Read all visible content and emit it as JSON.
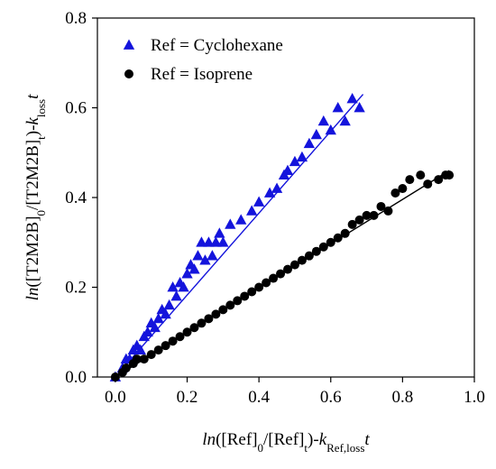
{
  "chart_data": {
    "type": "scatter",
    "title": "",
    "xlabel": {
      "segments": [
        {
          "text": "ln",
          "style": "italic"
        },
        {
          "text": "([Ref]",
          "style": "normal"
        },
        {
          "text": "0",
          "style": "sub"
        },
        {
          "text": "/[Ref]",
          "style": "normal"
        },
        {
          "text": "t",
          "style": "sub"
        },
        {
          "text": ")-",
          "style": "normal"
        },
        {
          "text": "k",
          "style": "italic"
        },
        {
          "text": "Ref,loss",
          "style": "sub"
        },
        {
          "text": "t",
          "style": "italic"
        }
      ]
    },
    "ylabel": {
      "segments": [
        {
          "text": "ln",
          "style": "italic"
        },
        {
          "text": "([T2M2B]",
          "style": "normal"
        },
        {
          "text": "0",
          "style": "sub"
        },
        {
          "text": "/[T2M2B]",
          "style": "normal"
        },
        {
          "text": "t",
          "style": "sub"
        },
        {
          "text": ")-",
          "style": "normal"
        },
        {
          "text": "k",
          "style": "italic"
        },
        {
          "text": "loss",
          "style": "sub"
        },
        {
          "text": "t",
          "style": "italic"
        }
      ]
    },
    "xlim": [
      -0.05,
      1.0
    ],
    "ylim": [
      0.0,
      0.8
    ],
    "xticks": [
      0.0,
      0.2,
      0.4,
      0.6,
      0.8,
      1.0
    ],
    "yticks": [
      0.0,
      0.2,
      0.4,
      0.6,
      0.8
    ],
    "xtick_labels": [
      "0.0",
      "0.2",
      "0.4",
      "0.6",
      "0.8",
      "1.0"
    ],
    "ytick_labels": [
      "0.0",
      "0.2",
      "0.4",
      "0.6",
      "0.8"
    ],
    "grid": false,
    "legend_position": "top-left",
    "series": [
      {
        "name": "Ref = Cyclohexane",
        "marker": "triangle",
        "color": "#1414dc",
        "x": [
          0.0,
          0.02,
          0.03,
          0.04,
          0.05,
          0.06,
          0.07,
          0.08,
          0.09,
          0.1,
          0.11,
          0.12,
          0.13,
          0.14,
          0.15,
          0.16,
          0.17,
          0.18,
          0.19,
          0.2,
          0.21,
          0.22,
          0.23,
          0.24,
          0.25,
          0.26,
          0.27,
          0.28,
          0.29,
          0.3,
          0.32,
          0.35,
          0.38,
          0.4,
          0.43,
          0.45,
          0.47,
          0.48,
          0.5,
          0.52,
          0.54,
          0.56,
          0.58,
          0.6,
          0.62,
          0.64,
          0.66,
          0.68
        ],
        "y": [
          0.0,
          0.02,
          0.04,
          0.04,
          0.06,
          0.07,
          0.06,
          0.09,
          0.1,
          0.12,
          0.11,
          0.13,
          0.15,
          0.14,
          0.16,
          0.2,
          0.18,
          0.21,
          0.2,
          0.23,
          0.25,
          0.24,
          0.27,
          0.3,
          0.26,
          0.3,
          0.27,
          0.3,
          0.32,
          0.3,
          0.34,
          0.35,
          0.37,
          0.39,
          0.41,
          0.42,
          0.45,
          0.46,
          0.48,
          0.49,
          0.52,
          0.54,
          0.57,
          0.55,
          0.6,
          0.57,
          0.62,
          0.6
        ],
        "fit": {
          "x": [
            0.0,
            0.69
          ],
          "y": [
            0.0,
            0.63
          ]
        }
      },
      {
        "name": "Ref = Isoprene",
        "marker": "circle",
        "color": "#000000",
        "x": [
          0.0,
          0.02,
          0.03,
          0.05,
          0.06,
          0.08,
          0.1,
          0.12,
          0.14,
          0.16,
          0.18,
          0.2,
          0.22,
          0.24,
          0.26,
          0.28,
          0.3,
          0.32,
          0.34,
          0.36,
          0.38,
          0.4,
          0.42,
          0.44,
          0.46,
          0.48,
          0.5,
          0.52,
          0.54,
          0.56,
          0.58,
          0.6,
          0.62,
          0.64,
          0.66,
          0.68,
          0.7,
          0.72,
          0.74,
          0.76,
          0.78,
          0.8,
          0.82,
          0.85,
          0.87,
          0.9,
          0.92,
          0.93
        ],
        "y": [
          0.0,
          0.01,
          0.02,
          0.03,
          0.04,
          0.04,
          0.05,
          0.06,
          0.07,
          0.08,
          0.09,
          0.1,
          0.11,
          0.12,
          0.13,
          0.14,
          0.15,
          0.16,
          0.17,
          0.18,
          0.19,
          0.2,
          0.21,
          0.22,
          0.23,
          0.24,
          0.25,
          0.26,
          0.27,
          0.28,
          0.29,
          0.3,
          0.31,
          0.32,
          0.34,
          0.35,
          0.36,
          0.36,
          0.38,
          0.37,
          0.41,
          0.42,
          0.44,
          0.45,
          0.43,
          0.44,
          0.45,
          0.45
        ],
        "fit": {
          "x": [
            0.0,
            0.93
          ],
          "y": [
            0.0,
            0.46
          ]
        }
      }
    ]
  }
}
